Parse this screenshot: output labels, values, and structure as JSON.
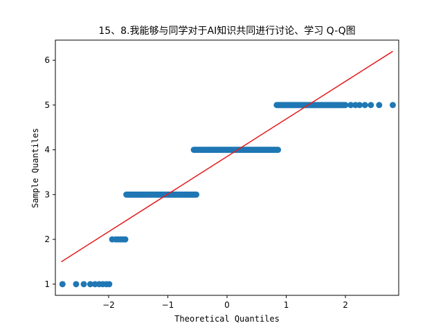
{
  "chart_data": {
    "type": "scatter",
    "title": "15、8.我能够与同学对于AI知识共同进行讨论、学习 Q-Q图",
    "xlabel": "Theoretical Quantiles",
    "ylabel": "Sample Quantiles",
    "xlim": [
      -2.9,
      2.9
    ],
    "ylim": [
      0.75,
      6.45
    ],
    "xticks": [
      -2,
      -1,
      0,
      1,
      2
    ],
    "yticks": [
      1,
      2,
      3,
      4,
      5,
      6
    ],
    "grid": false,
    "colors": {
      "points": "#1f77b4",
      "line": "#e41a1c"
    },
    "series": [
      {
        "groups": [
          {
            "y": 1,
            "x": [
              -2.78,
              -2.55,
              -2.42,
              -2.31,
              -2.23,
              -2.16,
              -2.1,
              -2.04,
              -1.99
            ]
          },
          {
            "y": 2,
            "x": [
              -1.94,
              -1.88,
              -1.84,
              -1.8,
              -1.76,
              -1.72
            ]
          },
          {
            "y": 3,
            "x_range": [
              -1.7,
              -0.52
            ],
            "count": 60
          },
          {
            "y": 4,
            "x_range": [
              -0.56,
              0.86
            ],
            "count": 72
          },
          {
            "y": 5,
            "x_range": [
              0.84,
              2.0
            ],
            "count": 60,
            "tail_x": [
              2.09,
              2.17,
              2.24,
              2.33,
              2.43,
              2.57,
              2.8
            ]
          }
        ]
      },
      {
        "type": "line",
        "x": [
          -2.8,
          2.8
        ],
        "y": [
          1.5,
          6.2
        ]
      }
    ]
  }
}
